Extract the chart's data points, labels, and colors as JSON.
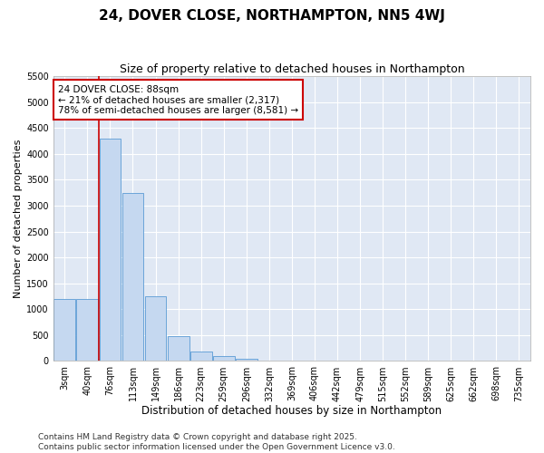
{
  "title": "24, DOVER CLOSE, NORTHAMPTON, NN5 4WJ",
  "subtitle": "Size of property relative to detached houses in Northampton",
  "xlabel": "Distribution of detached houses by size in Northampton",
  "ylabel": "Number of detached properties",
  "categories": [
    "3sqm",
    "40sqm",
    "76sqm",
    "113sqm",
    "149sqm",
    "186sqm",
    "223sqm",
    "259sqm",
    "296sqm",
    "332sqm",
    "369sqm",
    "406sqm",
    "442sqm",
    "479sqm",
    "515sqm",
    "552sqm",
    "589sqm",
    "625sqm",
    "662sqm",
    "698sqm",
    "735sqm"
  ],
  "bar_values": [
    1200,
    1200,
    4300,
    3250,
    1250,
    480,
    180,
    100,
    50,
    0,
    0,
    0,
    0,
    0,
    0,
    0,
    0,
    0,
    0,
    0,
    0
  ],
  "bar_color": "#c5d8f0",
  "bar_edge_color": "#5b9bd5",
  "vline_x_idx": 2,
  "vline_color": "#cc0000",
  "annotation_line1": "24 DOVER CLOSE: 88sqm",
  "annotation_line2": "← 21% of detached houses are smaller (2,317)",
  "annotation_line3": "78% of semi-detached houses are larger (8,581) →",
  "annotation_box_facecolor": "#ffffff",
  "annotation_box_edgecolor": "#cc0000",
  "ylim": [
    0,
    5500
  ],
  "yticks": [
    0,
    500,
    1000,
    1500,
    2000,
    2500,
    3000,
    3500,
    4000,
    4500,
    5000,
    5500
  ],
  "plot_bg_color": "#e0e8f4",
  "fig_bg_color": "#ffffff",
  "grid_color": "#ffffff",
  "footer_line1": "Contains HM Land Registry data © Crown copyright and database right 2025.",
  "footer_line2": "Contains public sector information licensed under the Open Government Licence v3.0.",
  "title_fontsize": 11,
  "subtitle_fontsize": 9,
  "xlabel_fontsize": 8.5,
  "ylabel_fontsize": 8,
  "tick_fontsize": 7,
  "annotation_fontsize": 7.5,
  "footer_fontsize": 6.5
}
